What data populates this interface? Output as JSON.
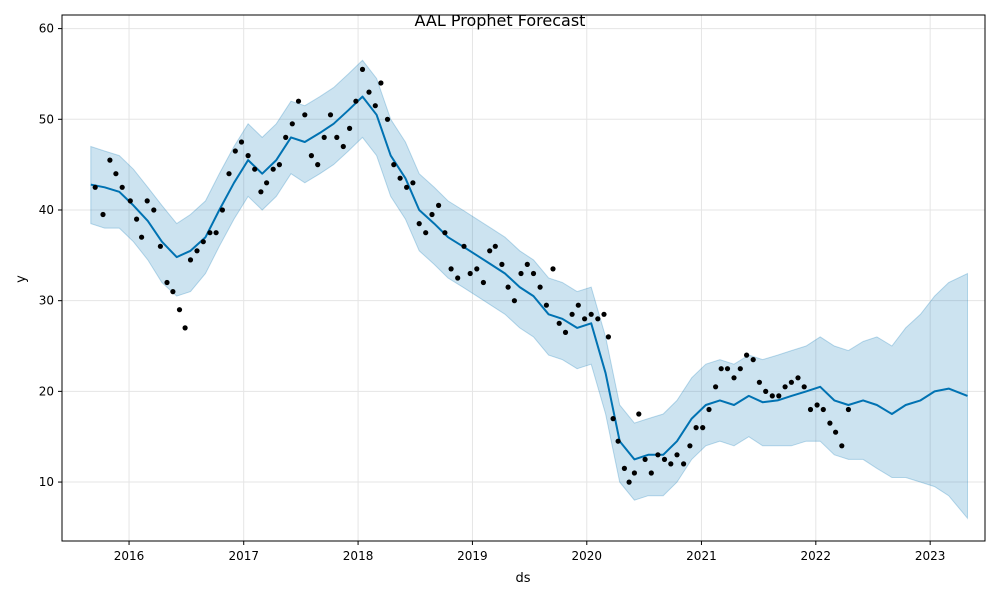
{
  "chart_data": {
    "type": "line",
    "title": "AAL Prophet Forecast",
    "xlabel": "ds",
    "ylabel": "y",
    "xlim": [
      "2015-06-01",
      "2023-06-25"
    ],
    "ylim": [
      3.5,
      61.5
    ],
    "x_ticks": [
      "2016",
      "2017",
      "2018",
      "2019",
      "2020",
      "2021",
      "2022",
      "2023"
    ],
    "y_ticks": [
      10,
      20,
      30,
      40,
      50,
      60
    ],
    "grid": true,
    "colors": {
      "observed": "#000000",
      "forecast": "#0072B2",
      "interval": "#0072B2"
    },
    "series": [
      {
        "kind": "forecast",
        "x": [
          "2015-09-01",
          "2015-10-15",
          "2015-12-01",
          "2016-01-15",
          "2016-03-01",
          "2016-04-15",
          "2016-06-01",
          "2016-07-15",
          "2016-09-01",
          "2016-10-15",
          "2016-12-01",
          "2017-01-15",
          "2017-03-01",
          "2017-04-15",
          "2017-06-01",
          "2017-07-15",
          "2017-09-01",
          "2017-10-15",
          "2017-12-01",
          "2018-01-15",
          "2018-03-01",
          "2018-04-15",
          "2018-06-01",
          "2018-07-15",
          "2018-09-01",
          "2018-10-15",
          "2018-12-01",
          "2019-01-15",
          "2019-03-01",
          "2019-04-15",
          "2019-06-01",
          "2019-07-15",
          "2019-09-01",
          "2019-10-15",
          "2019-12-01",
          "2020-01-15",
          "2020-03-01",
          "2020-04-15",
          "2020-06-01",
          "2020-07-15",
          "2020-09-01",
          "2020-10-15",
          "2020-12-01",
          "2021-01-15",
          "2021-03-01",
          "2021-04-15",
          "2021-06-01",
          "2021-07-15",
          "2021-09-01",
          "2021-10-15",
          "2021-12-01",
          "2022-01-15",
          "2022-03-01",
          "2022-04-15",
          "2022-06-01",
          "2022-07-15",
          "2022-09-01",
          "2022-10-15",
          "2022-12-01",
          "2023-01-15",
          "2023-03-01",
          "2023-04-30"
        ],
        "yhat": [
          42.8,
          42.5,
          42.0,
          40.5,
          38.8,
          36.5,
          34.8,
          35.5,
          37.0,
          40.0,
          43.0,
          45.5,
          44.0,
          45.5,
          48.0,
          47.5,
          48.5,
          49.5,
          51.0,
          52.5,
          50.5,
          46.0,
          43.5,
          40.0,
          38.5,
          37.0,
          36.0,
          35.0,
          34.0,
          33.0,
          31.5,
          30.5,
          28.5,
          28.0,
          27.0,
          27.5,
          22.0,
          14.5,
          12.5,
          13.0,
          13.0,
          14.5,
          17.0,
          18.5,
          19.0,
          18.5,
          19.5,
          18.8,
          19.0,
          19.5,
          20.0,
          20.5,
          19.0,
          18.5,
          19.0,
          18.5,
          17.5,
          18.5,
          19.0,
          20.0,
          20.3,
          19.5
        ],
        "yhat_lower": [
          38.5,
          38.0,
          38.0,
          36.5,
          34.5,
          32.0,
          30.5,
          31.0,
          33.0,
          36.0,
          39.0,
          41.5,
          40.0,
          41.5,
          44.0,
          43.0,
          44.0,
          45.0,
          46.5,
          48.0,
          46.0,
          41.5,
          39.0,
          35.5,
          34.0,
          32.5,
          31.5,
          30.5,
          29.5,
          28.5,
          27.0,
          26.0,
          24.0,
          23.5,
          22.5,
          23.0,
          17.5,
          10.0,
          8.0,
          8.5,
          8.5,
          10.0,
          12.5,
          14.0,
          14.5,
          14.0,
          15.0,
          14.0,
          14.0,
          14.0,
          14.5,
          14.5,
          13.0,
          12.5,
          12.5,
          11.5,
          10.5,
          10.5,
          10.0,
          9.5,
          8.5,
          6.0
        ],
        "yhat_upper": [
          47.0,
          46.5,
          46.0,
          44.5,
          42.5,
          40.5,
          38.5,
          39.5,
          41.0,
          44.0,
          47.0,
          49.5,
          48.0,
          49.5,
          52.0,
          51.5,
          52.5,
          53.5,
          55.0,
          56.5,
          54.5,
          50.0,
          47.5,
          44.0,
          42.5,
          41.0,
          40.0,
          39.0,
          38.0,
          37.0,
          35.5,
          34.5,
          32.5,
          32.0,
          31.0,
          31.5,
          26.0,
          18.5,
          16.5,
          17.0,
          17.5,
          19.0,
          21.5,
          23.0,
          23.5,
          23.0,
          24.0,
          23.5,
          24.0,
          24.5,
          25.0,
          26.0,
          25.0,
          24.5,
          25.5,
          26.0,
          25.0,
          27.0,
          28.5,
          30.5,
          32.0,
          33.0
        ]
      },
      {
        "kind": "observed",
        "x": [
          "2015-09-15",
          "2015-10-10",
          "2015-11-01",
          "2015-11-20",
          "2015-12-10",
          "2016-01-05",
          "2016-01-25",
          "2016-02-10",
          "2016-02-28",
          "2016-03-20",
          "2016-04-10",
          "2016-05-01",
          "2016-05-20",
          "2016-06-10",
          "2016-06-28",
          "2016-07-15",
          "2016-08-05",
          "2016-08-25",
          "2016-09-15",
          "2016-10-05",
          "2016-10-25",
          "2016-11-15",
          "2016-12-05",
          "2016-12-25",
          "2017-01-15",
          "2017-02-05",
          "2017-02-25",
          "2017-03-15",
          "2017-04-05",
          "2017-04-25",
          "2017-05-15",
          "2017-06-05",
          "2017-06-25",
          "2017-07-15",
          "2017-08-05",
          "2017-08-25",
          "2017-09-15",
          "2017-10-05",
          "2017-10-25",
          "2017-11-15",
          "2017-12-05",
          "2017-12-25",
          "2018-01-15",
          "2018-02-05",
          "2018-02-25",
          "2018-03-15",
          "2018-04-05",
          "2018-04-25",
          "2018-05-15",
          "2018-06-05",
          "2018-06-25",
          "2018-07-15",
          "2018-08-05",
          "2018-08-25",
          "2018-09-15",
          "2018-10-05",
          "2018-10-25",
          "2018-11-15",
          "2018-12-05",
          "2018-12-25",
          "2019-01-15",
          "2019-02-05",
          "2019-02-25",
          "2019-03-15",
          "2019-04-05",
          "2019-04-25",
          "2019-05-15",
          "2019-06-05",
          "2019-06-25",
          "2019-07-15",
          "2019-08-05",
          "2019-08-25",
          "2019-09-15",
          "2019-10-05",
          "2019-10-25",
          "2019-11-15",
          "2019-12-05",
          "2019-12-25",
          "2020-01-15",
          "2020-02-05",
          "2020-02-25",
          "2020-03-10",
          "2020-03-25",
          "2020-04-10",
          "2020-04-30",
          "2020-05-15",
          "2020-06-01",
          "2020-06-15",
          "2020-07-05",
          "2020-07-25",
          "2020-08-15",
          "2020-09-05",
          "2020-09-25",
          "2020-10-15",
          "2020-11-05",
          "2020-11-25",
          "2020-12-15",
          "2021-01-05",
          "2021-01-25",
          "2021-02-15",
          "2021-03-05",
          "2021-03-25",
          "2021-04-15",
          "2021-05-05",
          "2021-05-25",
          "2021-06-15",
          "2021-07-05",
          "2021-07-25",
          "2021-08-15",
          "2021-09-05",
          "2021-09-25",
          "2021-10-15",
          "2021-11-05",
          "2021-11-25",
          "2021-12-15",
          "2022-01-05",
          "2022-01-25",
          "2022-02-15",
          "2022-03-05",
          "2022-03-25",
          "2022-04-15"
        ],
        "y": [
          42.5,
          39.5,
          45.5,
          44.0,
          42.5,
          41.0,
          39.0,
          37.0,
          41.0,
          40.0,
          36.0,
          32.0,
          31.0,
          29.0,
          27.0,
          34.5,
          35.5,
          36.5,
          37.5,
          37.5,
          40.0,
          44.0,
          46.5,
          47.5,
          46.0,
          44.5,
          42.0,
          43.0,
          44.5,
          45.0,
          48.0,
          49.5,
          52.0,
          50.5,
          46.0,
          45.0,
          48.0,
          50.5,
          48.0,
          47.0,
          49.0,
          52.0,
          55.5,
          53.0,
          51.5,
          54.0,
          50.0,
          45.0,
          43.5,
          42.5,
          43.0,
          38.5,
          37.5,
          39.5,
          40.5,
          37.5,
          33.5,
          32.5,
          36.0,
          33.0,
          33.5,
          32.0,
          35.5,
          36.0,
          34.0,
          31.5,
          30.0,
          33.0,
          34.0,
          33.0,
          31.5,
          29.5,
          33.5,
          27.5,
          26.5,
          28.5,
          29.5,
          28.0,
          28.5,
          28.0,
          28.5,
          26.0,
          17.0,
          14.5,
          11.5,
          10.0,
          11.0,
          17.5,
          12.5,
          11.0,
          13.0,
          12.5,
          12.0,
          13.0,
          12.0,
          14.0,
          16.0,
          16.0,
          18.0,
          20.5,
          22.5,
          22.5,
          21.5,
          22.5,
          24.0,
          23.5,
          21.0,
          20.0,
          19.5,
          19.5,
          20.5,
          21.0,
          21.5,
          20.5,
          18.0,
          18.5,
          18.0,
          16.5,
          15.5,
          14.0,
          18.0
        ]
      }
    ]
  }
}
